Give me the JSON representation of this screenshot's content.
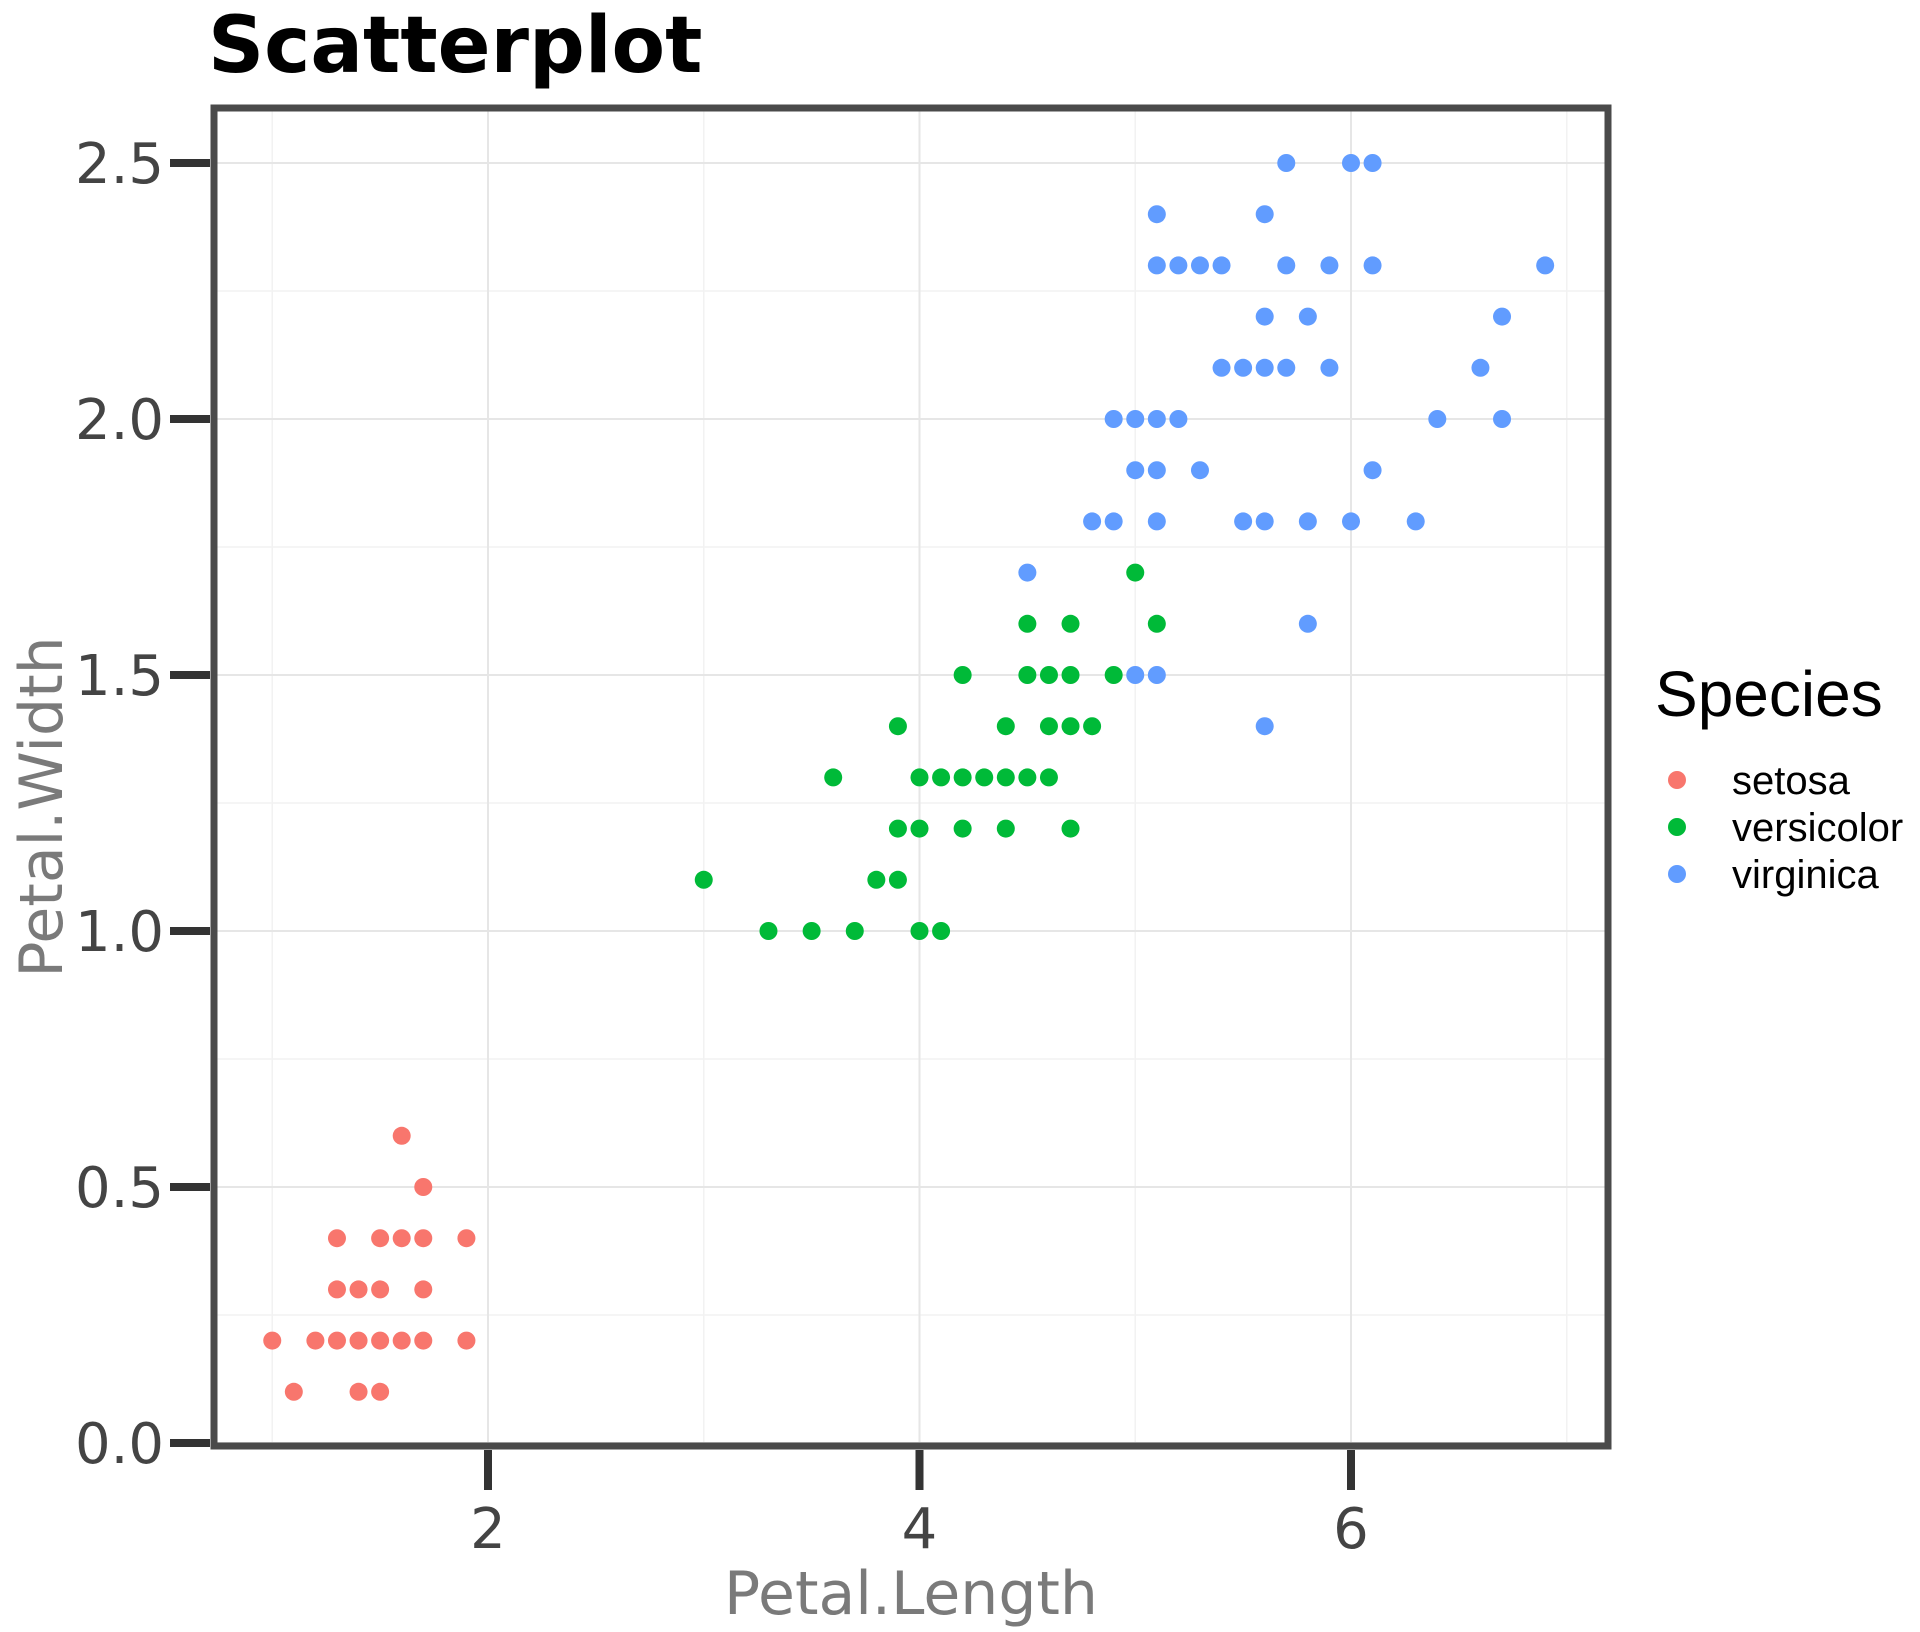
{
  "chart_data": {
    "type": "scatter",
    "title": "Scatterplot",
    "xlabel": "Petal.Length",
    "ylabel": "Petal.Width",
    "xlim": [
      0.8,
      7.3
    ],
    "ylim": [
      0.0,
      2.5
    ],
    "xticks": [
      {
        "value": 2,
        "label": "2"
      },
      {
        "value": 4,
        "label": "4"
      },
      {
        "value": 6,
        "label": "6"
      }
    ],
    "yticks": [
      {
        "value": 0.0,
        "label": "0.0"
      },
      {
        "value": 0.5,
        "label": "0.5"
      },
      {
        "value": 1.0,
        "label": "1.0"
      },
      {
        "value": 1.5,
        "label": "1.5"
      },
      {
        "value": 2.0,
        "label": "2.0"
      },
      {
        "value": 2.5,
        "label": "2.5"
      }
    ],
    "grid": true,
    "legend": {
      "title": "Species",
      "position": "right"
    },
    "series": [
      {
        "name": "setosa",
        "color": "#F8766D",
        "points": [
          [
            1.0,
            0.2
          ],
          [
            1.1,
            0.1
          ],
          [
            1.2,
            0.2
          ],
          [
            1.3,
            0.2
          ],
          [
            1.3,
            0.3
          ],
          [
            1.3,
            0.4
          ],
          [
            1.4,
            0.1
          ],
          [
            1.4,
            0.2
          ],
          [
            1.4,
            0.3
          ],
          [
            1.5,
            0.1
          ],
          [
            1.5,
            0.2
          ],
          [
            1.5,
            0.3
          ],
          [
            1.5,
            0.4
          ],
          [
            1.6,
            0.2
          ],
          [
            1.6,
            0.4
          ],
          [
            1.6,
            0.6
          ],
          [
            1.7,
            0.2
          ],
          [
            1.7,
            0.3
          ],
          [
            1.7,
            0.4
          ],
          [
            1.7,
            0.5
          ],
          [
            1.9,
            0.2
          ],
          [
            1.9,
            0.4
          ]
        ]
      },
      {
        "name": "versicolor",
        "color": "#00BA38",
        "points": [
          [
            3.0,
            1.1
          ],
          [
            3.3,
            1.0
          ],
          [
            3.5,
            1.0
          ],
          [
            3.6,
            1.3
          ],
          [
            3.7,
            1.0
          ],
          [
            3.8,
            1.1
          ],
          [
            3.9,
            1.1
          ],
          [
            3.9,
            1.2
          ],
          [
            3.9,
            1.4
          ],
          [
            4.0,
            1.0
          ],
          [
            4.0,
            1.2
          ],
          [
            4.0,
            1.3
          ],
          [
            4.1,
            1.0
          ],
          [
            4.1,
            1.3
          ],
          [
            4.2,
            1.2
          ],
          [
            4.2,
            1.3
          ],
          [
            4.2,
            1.5
          ],
          [
            4.3,
            1.3
          ],
          [
            4.4,
            1.2
          ],
          [
            4.4,
            1.3
          ],
          [
            4.4,
            1.4
          ],
          [
            4.5,
            1.3
          ],
          [
            4.5,
            1.5
          ],
          [
            4.5,
            1.6
          ],
          [
            4.6,
            1.3
          ],
          [
            4.6,
            1.4
          ],
          [
            4.6,
            1.5
          ],
          [
            4.7,
            1.2
          ],
          [
            4.7,
            1.4
          ],
          [
            4.7,
            1.5
          ],
          [
            4.7,
            1.6
          ],
          [
            4.8,
            1.4
          ],
          [
            4.9,
            1.5
          ],
          [
            5.0,
            1.7
          ],
          [
            5.1,
            1.6
          ]
        ]
      },
      {
        "name": "virginica",
        "color": "#619CFF",
        "points": [
          [
            4.5,
            1.7
          ],
          [
            4.8,
            1.8
          ],
          [
            4.9,
            1.8
          ],
          [
            4.9,
            2.0
          ],
          [
            5.0,
            1.5
          ],
          [
            5.0,
            1.9
          ],
          [
            5.0,
            2.0
          ],
          [
            5.1,
            1.5
          ],
          [
            5.1,
            1.8
          ],
          [
            5.1,
            1.9
          ],
          [
            5.1,
            2.0
          ],
          [
            5.1,
            2.3
          ],
          [
            5.1,
            2.4
          ],
          [
            5.2,
            2.0
          ],
          [
            5.2,
            2.3
          ],
          [
            5.3,
            1.9
          ],
          [
            5.3,
            2.3
          ],
          [
            5.4,
            2.1
          ],
          [
            5.4,
            2.3
          ],
          [
            5.5,
            1.8
          ],
          [
            5.5,
            2.1
          ],
          [
            5.6,
            1.4
          ],
          [
            5.6,
            1.8
          ],
          [
            5.6,
            2.1
          ],
          [
            5.6,
            2.2
          ],
          [
            5.6,
            2.4
          ],
          [
            5.7,
            2.1
          ],
          [
            5.7,
            2.3
          ],
          [
            5.7,
            2.5
          ],
          [
            5.8,
            1.6
          ],
          [
            5.8,
            1.8
          ],
          [
            5.8,
            2.2
          ],
          [
            5.9,
            2.1
          ],
          [
            5.9,
            2.3
          ],
          [
            6.0,
            1.8
          ],
          [
            6.0,
            2.5
          ],
          [
            6.1,
            1.9
          ],
          [
            6.1,
            2.3
          ],
          [
            6.1,
            2.5
          ],
          [
            6.3,
            1.8
          ],
          [
            6.4,
            2.0
          ],
          [
            6.6,
            2.1
          ],
          [
            6.7,
            2.0
          ],
          [
            6.7,
            2.2
          ],
          [
            6.9,
            2.3
          ]
        ]
      }
    ]
  }
}
